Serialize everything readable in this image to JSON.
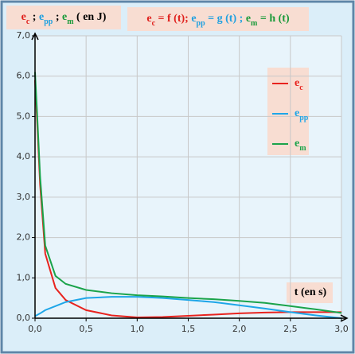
{
  "chart_data": {
    "type": "line",
    "title": [
      {
        "t": "e",
        "color": "#e0201c"
      },
      {
        "s": "c",
        "color": "#e0201c"
      },
      {
        "t": " = f (t); ",
        "color": "#e0201c"
      },
      {
        "t": "e",
        "color": "#1ea0e0"
      },
      {
        "s": "pp",
        "color": "#1ea0e0"
      },
      {
        "t": " = g (t) ; ",
        "color": "#1ea0e0"
      },
      {
        "t": "e",
        "color": "#1a9a3a"
      },
      {
        "s": "m",
        "color": "#1a9a3a"
      },
      {
        "t": " = h (t)",
        "color": "#1a9a3a"
      }
    ],
    "y_label": [
      {
        "t": "e",
        "color": "#e0201c"
      },
      {
        "s": "c",
        "color": "#e0201c"
      },
      {
        "t": " ; ",
        "color": "#000000"
      },
      {
        "t": "e",
        "color": "#1ea0e0"
      },
      {
        "s": "pp",
        "color": "#1ea0e0"
      },
      {
        "t": " ; ",
        "color": "#000000"
      },
      {
        "t": "e",
        "color": "#1a9a3a"
      },
      {
        "s": "m",
        "color": "#1a9a3a"
      },
      {
        "t": " ( en J)",
        "color": "#000000"
      }
    ],
    "x_label": "t (en s)",
    "x": [
      0,
      0.02,
      0.05,
      0.1,
      0.2,
      0.3,
      0.5,
      0.75,
      1.0,
      1.25,
      1.5,
      1.75,
      2.0,
      2.25,
      2.5,
      2.75,
      3.0
    ],
    "series": [
      {
        "name": "e",
        "name_sub": "c",
        "color": "#e8231e",
        "values": [
          5.9,
          4.9,
          3.3,
          1.6,
          0.75,
          0.45,
          0.2,
          0.07,
          0.02,
          0.03,
          0.06,
          0.09,
          0.12,
          0.14,
          0.15,
          0.15,
          0.15
        ]
      },
      {
        "name": "e",
        "name_sub": "pp",
        "color": "#1ea6e8",
        "values": [
          0.05,
          0.08,
          0.12,
          0.2,
          0.3,
          0.4,
          0.5,
          0.53,
          0.53,
          0.5,
          0.45,
          0.4,
          0.32,
          0.24,
          0.15,
          0.07,
          0.0
        ]
      },
      {
        "name": "e",
        "name_sub": "m",
        "color": "#1aa34a",
        "values": [
          6.1,
          5.1,
          3.5,
          1.8,
          1.05,
          0.85,
          0.7,
          0.62,
          0.57,
          0.54,
          0.5,
          0.47,
          0.43,
          0.38,
          0.3,
          0.22,
          0.13
        ]
      }
    ],
    "xlim": [
      0,
      3.0
    ],
    "ylim": [
      0,
      7.0
    ],
    "xticks": [
      {
        "value": 0,
        "label": "0,0"
      },
      {
        "value": 0.5,
        "label": "0,5"
      },
      {
        "value": 1.0,
        "label": "1,0"
      },
      {
        "value": 1.5,
        "label": "1,5"
      },
      {
        "value": 2.0,
        "label": "2,0"
      },
      {
        "value": 2.5,
        "label": "2,5"
      },
      {
        "value": 3.0,
        "label": "3,0"
      }
    ],
    "yticks": [
      {
        "value": 0,
        "label": "0,0"
      },
      {
        "value": 1.0,
        "label": "1,0"
      },
      {
        "value": 2.0,
        "label": "2,0"
      },
      {
        "value": 3.0,
        "label": "3,0"
      },
      {
        "value": 4.0,
        "label": "4,0"
      },
      {
        "value": 5.0,
        "label": "5,0"
      },
      {
        "value": 6.0,
        "label": "6,0"
      },
      {
        "value": 7.0,
        "label": "7,0"
      }
    ],
    "grid": true
  }
}
